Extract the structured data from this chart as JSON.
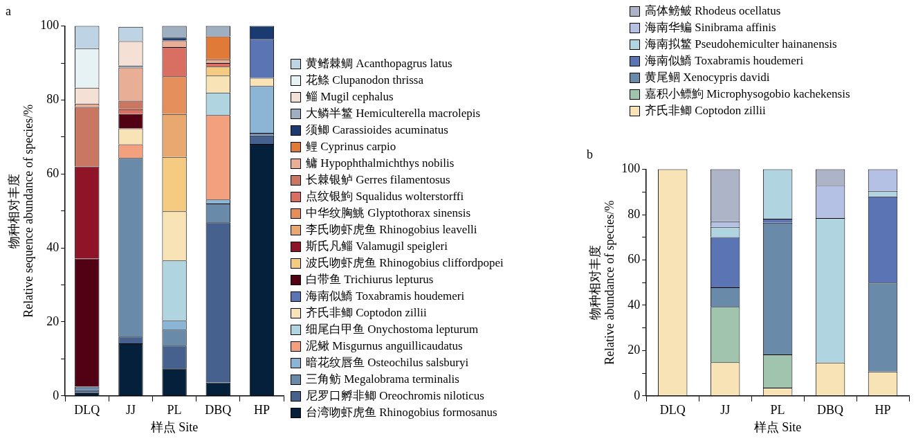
{
  "chart_data": [
    {
      "type": "bar",
      "title": "a",
      "xlabel": "样点 Site",
      "ylabel": "物种相对丰度\nRelative sequence abundance of species/%",
      "categories": [
        "DLQ",
        "JJ",
        "PL",
        "DBQ",
        "HP"
      ],
      "stacked": true,
      "ylim": [
        0,
        100
      ],
      "yticks": [
        0,
        {
          "value": 10,
          "label": null
        },
        20,
        {
          "value": 30,
          "label": null
        },
        40,
        {
          "value": 50,
          "label": null
        },
        60,
        {
          "value": 70,
          "label": null
        },
        80,
        {
          "value": 90,
          "label": null
        },
        100
      ],
      "legend": "right",
      "series": [
        {
          "name": "台湾吻虾虎鱼 Rhinogobius formosanus",
          "color": "#04203a",
          "values": [
            1.0,
            14.2,
            7.4,
            3.6,
            68.1
          ]
        },
        {
          "name": "尼罗口孵非鲫 Oreochromis niloticus",
          "color": "#46618e",
          "values": [
            0.5,
            1.8,
            6.2,
            43.3,
            2.3
          ]
        },
        {
          "name": "三角鲂 Megalobrama terminalis",
          "color": "#6a8aaa",
          "values": [
            1.0,
            48.3,
            4.3,
            5.1,
            0.7
          ]
        },
        {
          "name": "暗花纹唇鱼 Osteochilus salsburyi",
          "color": "#8cb4d4",
          "values": [
            0,
            0,
            2.4,
            1.1,
            12.7
          ]
        },
        {
          "name": "泥鳅 Misgurnus anguillicaudatus",
          "color": "#f2a07e",
          "values": [
            0,
            3.7,
            0,
            22.8,
            0
          ]
        },
        {
          "name": "细尾白甲鱼 Onychostoma lepturum",
          "color": "#b0d4e0",
          "values": [
            0,
            0,
            16.3,
            6.1,
            0
          ]
        },
        {
          "name": "齐氏非鲫 Coptodon zillii",
          "color": "#f7e3b5",
          "values": [
            0,
            4.3,
            13.3,
            4.6,
            2.2
          ]
        },
        {
          "name": "海南似鱎 Toxabramis houdemeri",
          "color": "#5a74b4",
          "values": [
            0,
            0,
            0,
            0,
            10.5
          ]
        },
        {
          "name": "白带鱼 Trichiurus lepturus",
          "color": "#520014",
          "values": [
            34.6,
            3.9,
            0,
            0,
            0
          ]
        },
        {
          "name": "波氏吻虾虎鱼 Rhinogobius cliffordpopei",
          "color": "#f4cb80",
          "values": [
            0,
            0,
            14.7,
            2.4,
            0
          ]
        },
        {
          "name": "斯氏凡鲻 Valamugil speigleri",
          "color": "#8f1428",
          "values": [
            24.9,
            0,
            0,
            0,
            0
          ]
        },
        {
          "name": "李氏吻虾虎鱼 Rhinogobius leavelli",
          "color": "#e9a870",
          "values": [
            0,
            0,
            11.6,
            0,
            0
          ]
        },
        {
          "name": "中华纹胸鮡 Glyptothorax sinensis",
          "color": "#e48f5c",
          "values": [
            0,
            0,
            10.2,
            0,
            0
          ]
        },
        {
          "name": "点纹银鮈 Squalidus wolterstorffi",
          "color": "#d96f62",
          "values": [
            0,
            1.3,
            7.9,
            1.0,
            0
          ]
        },
        {
          "name": "长棘银鲈 Gerres filamentosus",
          "color": "#c97763",
          "values": [
            16.1,
            2.3,
            0,
            0,
            0
          ]
        },
        {
          "name": "鳙 Hypophthalmichthys nobilis",
          "color": "#e8ae96",
          "values": [
            0.9,
            9.0,
            1.8,
            1.0,
            0
          ]
        },
        {
          "name": "鲤 Cyprinus carpio",
          "color": "#e07a38",
          "values": [
            0,
            0,
            0,
            6.2,
            0
          ]
        },
        {
          "name": "须鲫 Carassioides acuminatus",
          "color": "#1a3a70",
          "values": [
            0,
            0,
            0.8,
            0,
            3.5
          ]
        },
        {
          "name": "大鳞半鳘 Hemiculterella macrolepis",
          "color": "#9eafc2",
          "values": [
            0,
            0.5,
            3.1,
            2.8,
            0
          ]
        },
        {
          "name": "鲻 Mugil cephalus",
          "color": "#f5e0d6",
          "values": [
            4.3,
            6.6,
            0,
            0,
            0
          ]
        },
        {
          "name": "花鲦 Clupanodon thrissa",
          "color": "#e6f2f4",
          "values": [
            10.7,
            0,
            0,
            0,
            0
          ]
        },
        {
          "name": "黄鳍棘鲷 Acanthopagrus latus",
          "color": "#bed4e4",
          "values": [
            6.0,
            3.9,
            0,
            0,
            0
          ]
        }
      ]
    },
    {
      "type": "bar",
      "title": "b",
      "xlabel": "样点 Site",
      "ylabel": "物种相对丰度\nRelative abundance of species/%",
      "categories": [
        "DLQ",
        "JJ",
        "PL",
        "DBQ",
        "HP"
      ],
      "stacked": true,
      "ylim": [
        0,
        100
      ],
      "yticks": [
        0,
        {
          "value": 10,
          "label": null
        },
        20,
        {
          "value": 30,
          "label": null
        },
        40,
        {
          "value": 50,
          "label": null
        },
        60,
        {
          "value": 70,
          "label": null
        },
        80,
        {
          "value": 90,
          "label": null
        },
        100
      ],
      "legend": "top",
      "series": [
        {
          "name": "齐氏非鲫 Coptodon zillii",
          "color": "#f7e3b5",
          "values": [
            100,
            14.8,
            3.6,
            14.7,
            10.7
          ]
        },
        {
          "name": "嘉积小鳔鮈 Microphysogobio kachekensis",
          "color": "#a0c4ae",
          "values": [
            0,
            24.5,
            14.7,
            0,
            0
          ]
        },
        {
          "name": "黄尾鲴 Xenocypris davidi",
          "color": "#6a8aaa",
          "values": [
            0,
            8.6,
            58.1,
            0,
            39.3
          ]
        },
        {
          "name": "海南似鱎 Toxabramis houdemeri",
          "color": "#5a74b4",
          "values": [
            0,
            22.2,
            1.8,
            0,
            38.0
          ]
        },
        {
          "name": "海南拟鳘 Pseudohemiculter hainanensis",
          "color": "#b0d4e0",
          "values": [
            0,
            4.5,
            21.8,
            63.8,
            2.5
          ]
        },
        {
          "name": "海南华鳊 Sinibrama affinis",
          "color": "#b4c0e4",
          "values": [
            0,
            2.4,
            0,
            14.5,
            9.5
          ]
        },
        {
          "name": "高体鳑鲏 Rhodeus ocellatus",
          "color": "#aeb4c8",
          "values": [
            0,
            23.0,
            0,
            7.0,
            0
          ]
        }
      ]
    }
  ]
}
